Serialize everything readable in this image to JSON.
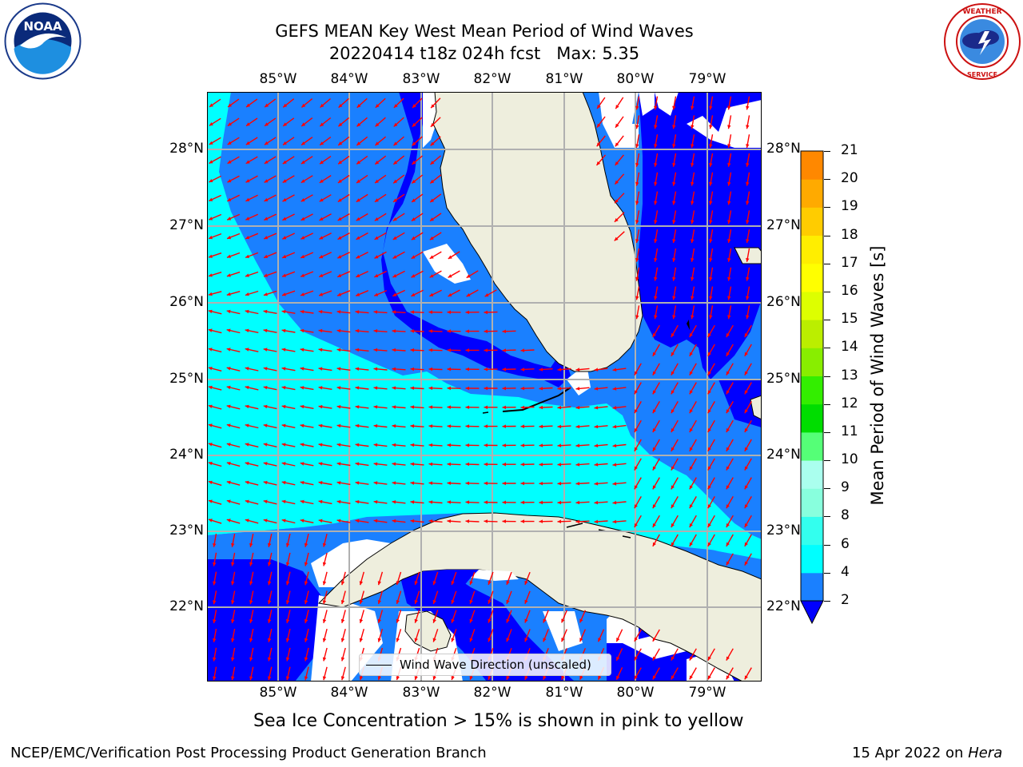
{
  "header": {
    "title_line1": "GEFS MEAN Key West Mean Period of Wind Waves",
    "title_line2": "20220414 t18z 024h fcst   Max: 5.35"
  },
  "logos": {
    "noaa_text": "NOAA",
    "noaa_ring": "NATIONAL OCEANIC AND ATMOSPHERIC ADMINISTRATION · U.S. DEPARTMENT OF COMMERCE",
    "nws_ring": "NATIONAL WEATHER SERVICE"
  },
  "map": {
    "lon_ticks": [
      "85°W",
      "84°W",
      "83°W",
      "82°W",
      "81°W",
      "80°W",
      "79°W"
    ],
    "lat_ticks": [
      "28°N",
      "27°N",
      "26°N",
      "25°N",
      "24°N",
      "23°N",
      "22°N"
    ],
    "legend_label": "Wind Wave Direction (unscaled)",
    "colors": {
      "land": "#eeeedd",
      "coast": "#000000",
      "arrow": "#ff0000",
      "grid": "#b0b0b0",
      "band_2_4": "#0000ff",
      "band_4_6": "#1a80ff",
      "band_6_8": "#00ffff"
    },
    "wind_direction": "mostly toward west over the Gulf, toward southwest/south near Florida Straits and Bahamas"
  },
  "colorbar": {
    "label": "Mean Period of Wind Waves [s]",
    "tick_labels": [
      "2",
      "4",
      "6",
      "8",
      "9",
      "10",
      "11",
      "12",
      "13",
      "14",
      "15",
      "16",
      "17",
      "18",
      "19",
      "20",
      "21"
    ],
    "colors": [
      "#1a80ff",
      "#00ffff",
      "#33ffee",
      "#88ffdd",
      "#aaffee",
      "#55ff77",
      "#00dd00",
      "#33ee00",
      "#88ee00",
      "#bbee00",
      "#ddff00",
      "#ffff00",
      "#ffee00",
      "#ffcc00",
      "#ffaa00",
      "#ff8800",
      "#ff5500",
      "#ff3300",
      "#ff0000"
    ]
  },
  "notes": {
    "sea_ice": "Sea Ice Concentration > 15% is shown in pink to yellow"
  },
  "footer": {
    "left": "NCEP/EMC/Verification Post Processing Product Generation Branch",
    "right_date": "15 Apr 2022 on",
    "right_host": "Hera"
  }
}
